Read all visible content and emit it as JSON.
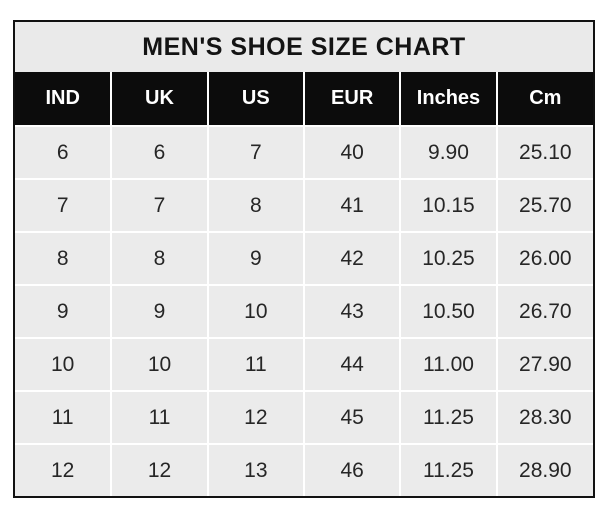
{
  "page": {
    "background": "#ffffff"
  },
  "colors": {
    "title_bg": "#eaeaea",
    "header_bg": "#0c0c0c",
    "header_text": "#ffffff",
    "cell_bg": "#ebebeb",
    "cell_text": "#262626",
    "outer_border": "#111111",
    "gridline": "#ffffff"
  },
  "chart_data": {
    "type": "table",
    "title": "MEN'S SHOE SIZE CHART",
    "columns": [
      "IND",
      "UK",
      "US",
      "EUR",
      "Inches",
      "Cm"
    ],
    "rows": [
      [
        "6",
        "6",
        "7",
        "40",
        "9.90",
        "25.10"
      ],
      [
        "7",
        "7",
        "8",
        "41",
        "10.15",
        "25.70"
      ],
      [
        "8",
        "8",
        "9",
        "42",
        "10.25",
        "26.00"
      ],
      [
        "9",
        "9",
        "10",
        "43",
        "10.50",
        "26.70"
      ],
      [
        "10",
        "10",
        "11",
        "44",
        "11.00",
        "27.90"
      ],
      [
        "11",
        "11",
        "12",
        "45",
        "11.25",
        "28.30"
      ],
      [
        "12",
        "12",
        "13",
        "46",
        "11.25",
        "28.90"
      ]
    ],
    "layout": {
      "grid": "white gridlines on gray cells",
      "header_position": "top",
      "title_position": "top-center"
    }
  }
}
